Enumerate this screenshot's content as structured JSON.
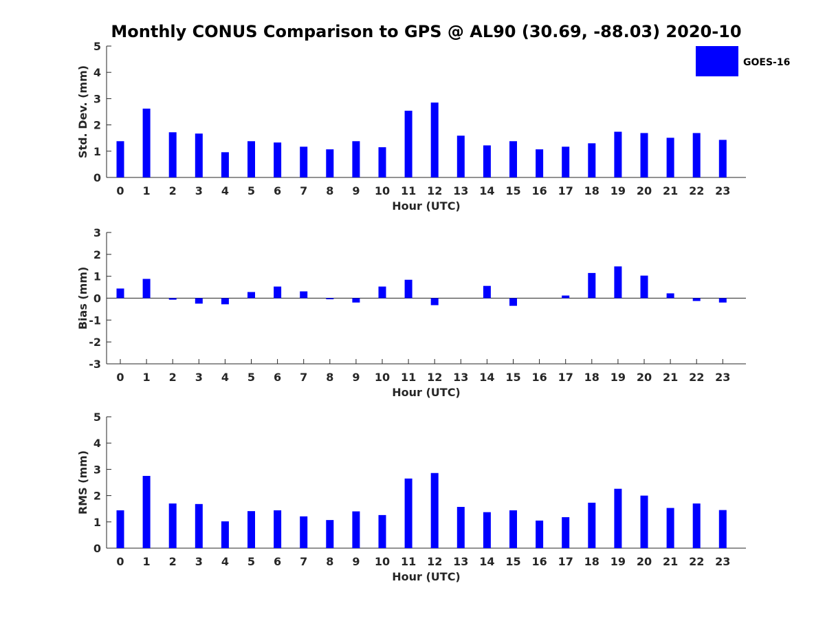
{
  "title": "Monthly CONUS Comparison to GPS @ AL90 (30.69, -88.03) 2020-10",
  "legend": {
    "label": "GOES-16",
    "color": "#0000FF",
    "placement": "top-right"
  },
  "chart_data": [
    {
      "type": "bar",
      "series": [
        {
          "name": "GOES-16",
          "values": [
            1.38,
            2.62,
            1.72,
            1.67,
            0.96,
            1.38,
            1.33,
            1.17,
            1.07,
            1.38,
            1.15,
            2.54,
            2.85,
            1.59,
            1.22,
            1.38,
            1.07,
            1.17,
            1.3,
            1.74,
            1.69,
            1.51,
            1.69,
            1.43
          ]
        }
      ],
      "categories": [
        "0",
        "1",
        "2",
        "3",
        "4",
        "5",
        "6",
        "7",
        "8",
        "9",
        "10",
        "11",
        "12",
        "13",
        "14",
        "15",
        "16",
        "17",
        "18",
        "19",
        "20",
        "21",
        "22",
        "23"
      ],
      "xlabel": "Hour (UTC)",
      "ylabel": "Std. Dev. (mm)",
      "ylim": [
        0,
        5
      ],
      "yticks": [
        "0",
        "1",
        "2",
        "3",
        "4",
        "5"
      ],
      "grid": false
    },
    {
      "type": "bar",
      "series": [
        {
          "name": "GOES-16",
          "values": [
            0.44,
            0.88,
            -0.07,
            -0.25,
            -0.28,
            0.28,
            0.53,
            0.31,
            -0.05,
            -0.2,
            0.53,
            0.84,
            -0.32,
            0.0,
            0.56,
            -0.35,
            0.0,
            0.12,
            1.15,
            1.45,
            1.03,
            0.22,
            -0.13,
            -0.2
          ]
        }
      ],
      "categories": [
        "0",
        "1",
        "2",
        "3",
        "4",
        "5",
        "6",
        "7",
        "8",
        "9",
        "10",
        "11",
        "12",
        "13",
        "14",
        "15",
        "16",
        "17",
        "18",
        "19",
        "20",
        "21",
        "22",
        "23"
      ],
      "xlabel": "Hour (UTC)",
      "ylabel": "Bias (mm)",
      "ylim": [
        -3,
        3
      ],
      "yticks": [
        "-3",
        "-2",
        "-1",
        "0",
        "1",
        "2",
        "3"
      ],
      "zeroline": true,
      "grid": false
    },
    {
      "type": "bar",
      "series": [
        {
          "name": "GOES-16",
          "values": [
            1.44,
            2.75,
            1.7,
            1.68,
            1.02,
            1.41,
            1.44,
            1.21,
            1.07,
            1.4,
            1.26,
            2.65,
            2.86,
            1.57,
            1.37,
            1.44,
            1.05,
            1.18,
            1.73,
            2.26,
            2.0,
            1.53,
            1.7,
            1.45
          ]
        }
      ],
      "categories": [
        "0",
        "1",
        "2",
        "3",
        "4",
        "5",
        "6",
        "7",
        "8",
        "9",
        "10",
        "11",
        "12",
        "13",
        "14",
        "15",
        "16",
        "17",
        "18",
        "19",
        "20",
        "21",
        "22",
        "23"
      ],
      "xlabel": "Hour (UTC)",
      "ylabel": "RMS (mm)",
      "ylim": [
        0,
        5
      ],
      "yticks": [
        "0",
        "1",
        "2",
        "3",
        "4",
        "5"
      ],
      "grid": false
    }
  ]
}
